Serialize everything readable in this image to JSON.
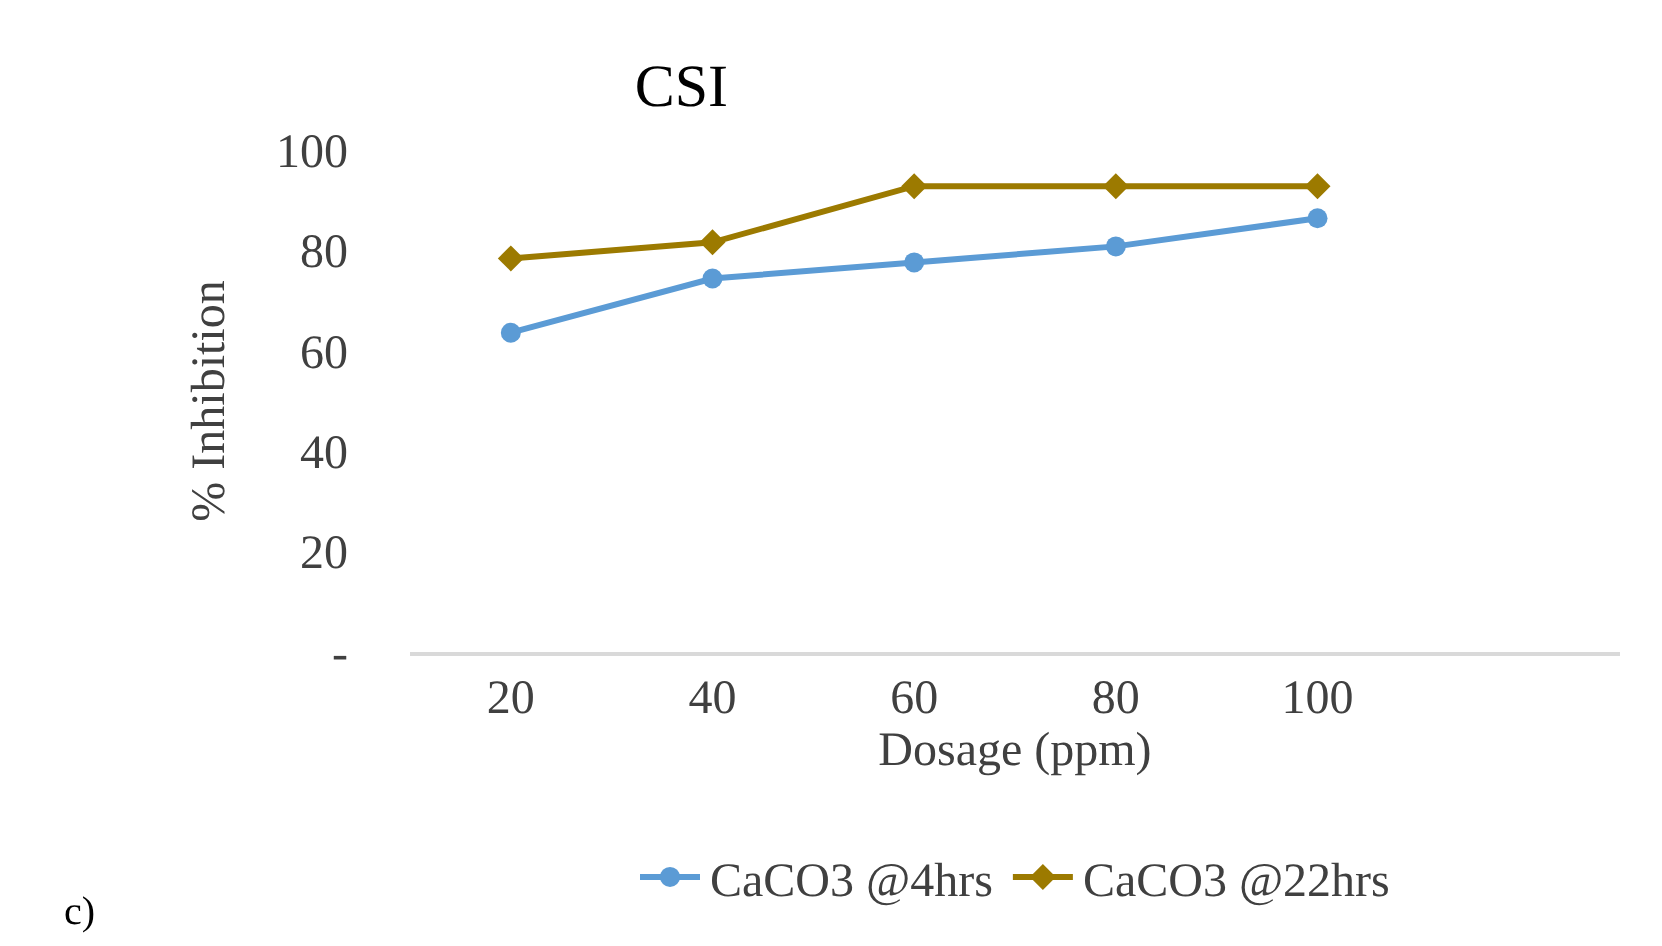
{
  "chart_data": {
    "type": "line",
    "title": "CSI",
    "xlabel": "Dosage (ppm)",
    "ylabel": "% Inhibition",
    "x": [
      20,
      40,
      60,
      80,
      100
    ],
    "series": [
      {
        "name": "CaCO3 @4hrs",
        "color": "#5b9bd5",
        "marker": "circle",
        "values": [
          63.6,
          74.4,
          77.6,
          80.8,
          86.4
        ]
      },
      {
        "name": "CaCO3 @22hrs",
        "color": "#9c7a00",
        "marker": "diamond",
        "values": [
          78.4,
          81.6,
          92.8,
          92.8,
          92.8
        ]
      }
    ],
    "xlim": [
      10,
      130
    ],
    "xticks": [
      20,
      40,
      60,
      80,
      100
    ],
    "ylim": [
      0,
      100
    ],
    "yticks": [
      {
        "value": 0,
        "label": "-"
      },
      20,
      40,
      60,
      80,
      100
    ],
    "grid": false,
    "legend": "bottom",
    "line_style": "solid",
    "annotations": [
      "c)"
    ]
  }
}
